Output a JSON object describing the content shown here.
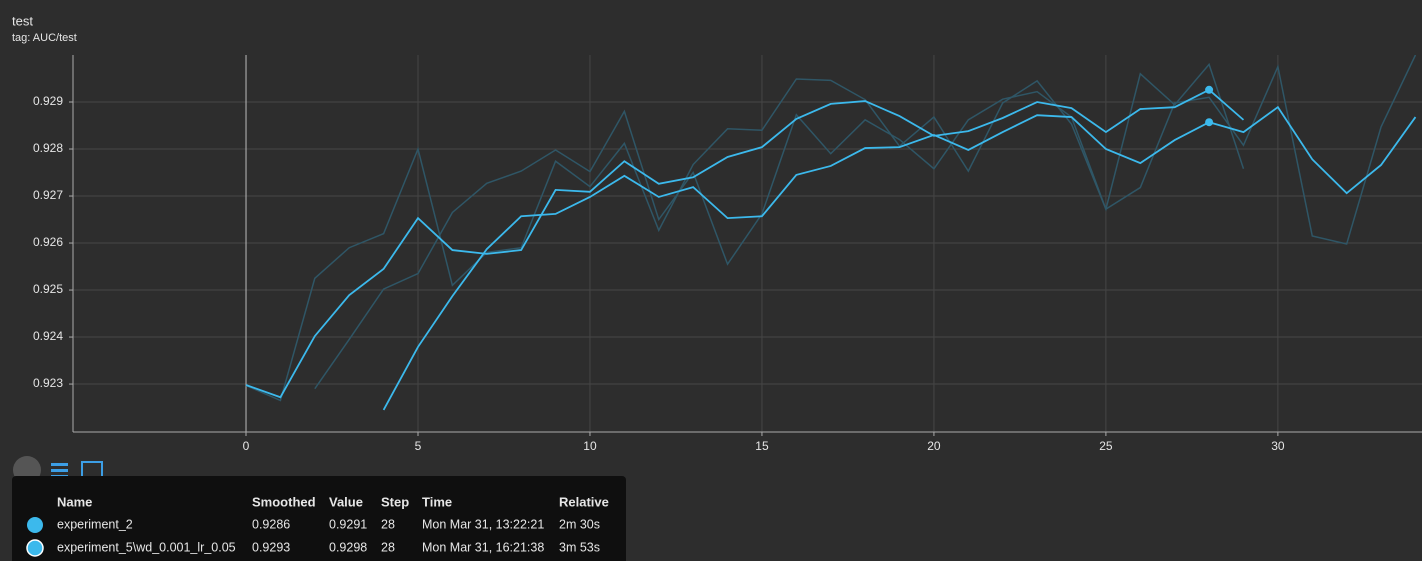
{
  "panel": {
    "title": "test",
    "tag": "tag: AUC/test"
  },
  "chart_data": {
    "type": "line",
    "x": [
      0,
      1,
      2,
      3,
      4,
      5,
      6,
      7,
      8,
      9,
      10,
      11,
      12,
      13,
      14,
      15,
      16,
      17,
      18,
      19,
      20,
      21,
      22,
      23,
      24,
      25,
      26,
      27,
      28,
      29,
      30,
      31,
      32,
      33,
      34
    ],
    "xlim": [
      -5.03,
      34.19
    ],
    "xticks": [
      0,
      5,
      10,
      15,
      20,
      25,
      30
    ],
    "ylim": [
      0.92198,
      0.93
    ],
    "yticks": [
      0.923,
      0.924,
      0.925,
      0.926,
      0.927,
      0.928,
      0.929
    ],
    "grid": true,
    "raw_color": "#2f5666",
    "series": [
      {
        "name": "experiment_2",
        "color": "#3cb9ec",
        "values": [
          null,
          null,
          null,
          null,
          0.92245,
          0.92379,
          0.92487,
          0.92587,
          0.92657,
          0.92662,
          0.92698,
          0.92743,
          0.92698,
          0.92719,
          0.92653,
          0.92657,
          0.92745,
          0.92764,
          0.92802,
          0.92804,
          0.9283,
          0.92798,
          0.92836,
          0.92872,
          0.92868,
          0.928,
          0.9277,
          0.92819,
          0.92857,
          0.92836,
          0.92889,
          0.92778,
          0.92706,
          0.92766,
          0.92868
        ],
        "raw_values": [
          null,
          null,
          0.9229,
          0.92395,
          0.92502,
          0.92535,
          0.92665,
          0.92727,
          0.92753,
          0.92798,
          0.92752,
          0.9288,
          0.9265,
          0.9275,
          0.92555,
          0.92662,
          0.92873,
          0.9279,
          0.92862,
          0.9282,
          0.92758,
          0.92862,
          0.92906,
          0.92922,
          0.92868,
          0.92672,
          0.92718,
          0.92898,
          0.9291,
          0.92808,
          0.92975,
          0.92615,
          0.92598,
          0.92847,
          0.93
        ]
      },
      {
        "name": "experiment_5\\wd_0.001_lr_0.05",
        "color": "#3cb9ec",
        "values": [
          0.92298,
          0.92272,
          0.92402,
          0.92489,
          0.92545,
          0.92653,
          0.92585,
          0.92577,
          0.92585,
          0.92713,
          0.92709,
          0.92774,
          0.92726,
          0.9274,
          0.92783,
          0.92804,
          0.92864,
          0.92896,
          0.92902,
          0.9287,
          0.92828,
          0.92838,
          0.92866,
          0.929,
          0.92887,
          0.92836,
          0.92885,
          0.92889,
          0.92926,
          0.92862,
          null,
          null,
          null,
          null,
          null
        ],
        "raw_values": [
          0.92297,
          0.92265,
          0.92525,
          0.9259,
          0.9262,
          0.928,
          0.9251,
          0.9258,
          0.9259,
          0.92774,
          0.9272,
          0.92812,
          0.92627,
          0.92767,
          0.92843,
          0.9284,
          0.92949,
          0.92946,
          0.92905,
          0.92806,
          0.92868,
          0.92753,
          0.92898,
          0.92945,
          0.92853,
          0.92672,
          0.9296,
          0.92894,
          0.9298,
          0.92758,
          null,
          null,
          null,
          null,
          null
        ]
      }
    ]
  },
  "tooltip": {
    "columns": [
      "Name",
      "Smoothed",
      "Value",
      "Step",
      "Time",
      "Relative"
    ],
    "rows": [
      [
        "experiment_2",
        0.9286,
        0.9291,
        28,
        "Mon Mar 31, 13:22:21",
        "2m 30s"
      ],
      [
        "experiment_5\\wd_0.001_lr_0.05",
        0.9293,
        0.9298,
        28,
        "Mon Mar 31, 16:21:38",
        "3m 53s"
      ]
    ]
  }
}
